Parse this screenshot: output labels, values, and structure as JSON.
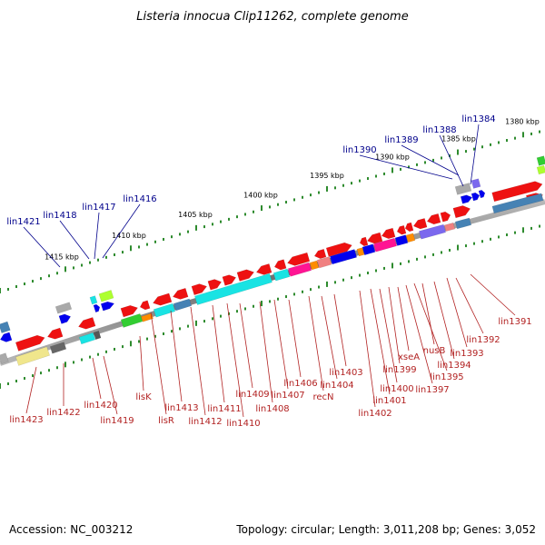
{
  "title": "Listeria innocua Clip11262, complete genome",
  "footer": {
    "accession": "Accession: NC_003212",
    "topology": "Topology: circular; Length: 3,011,208 bp; Genes: 3,052"
  },
  "scale_labels": [
    "1380 kbp",
    "1385 kbp",
    "1390 kbp",
    "1395 kbp",
    "1400 kbp",
    "1405 kbp",
    "1410 kbp",
    "1415 kbp"
  ],
  "labels_top": [
    "lin1384",
    "lin1388",
    "lin1389",
    "lin1390",
    "lin1416",
    "lin1417",
    "lin1418",
    "lin1421"
  ],
  "labels_bottom": [
    "lin1391",
    "lin1392",
    "lin1393",
    "lin1394",
    "nusB",
    "lin1395",
    "lin1397",
    "xseA",
    "lin1399",
    "lin1400",
    "lin1401",
    "lin1402",
    "lin1403",
    "lin1404",
    "recN",
    "lin1406",
    "lin1407",
    "lin1408",
    "lin1409",
    "lin1410",
    "lin1411",
    "lin1412",
    "lin1413",
    "lisR",
    "lisK",
    "lin1419",
    "lin1420",
    "lin1422",
    "lin1423"
  ],
  "colors": {
    "backbone": "#808080",
    "tick": "#2e8b2e",
    "label_top": "#00008b",
    "label_bottom": "#b22222",
    "cds_red": "#ee1111",
    "cds_cyan": "#19e3e3",
    "cds_steel": "#4682b4",
    "cds_blue": "#0000ee",
    "cds_magenta": "#ff1493",
    "cds_purple": "#7b68ee",
    "cds_green": "#32cd32",
    "cds_lime": "#adff2f",
    "cds_gray": "#a9a9a9",
    "cds_khaki": "#f0e68c",
    "cds_orange": "#ff8c00",
    "cds_salmon": "#f08080"
  }
}
